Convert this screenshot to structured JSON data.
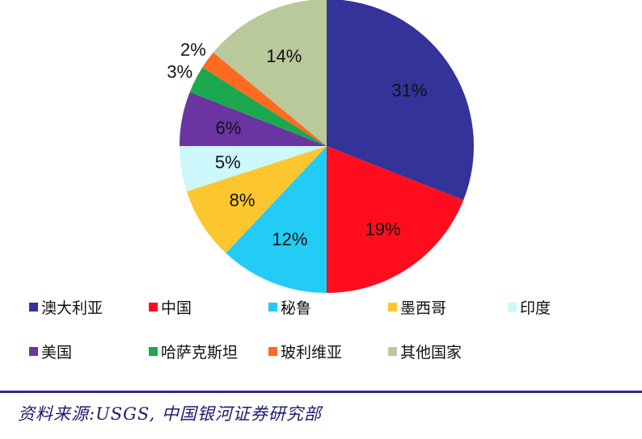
{
  "chart_data": {
    "type": "pie",
    "title": "",
    "start_angle_deg": 0,
    "direction": "clockwise",
    "categories": [
      "澳大利亚",
      "中国",
      "秘鲁",
      "墨西哥",
      "印度",
      "美国",
      "哈萨克斯坦",
      "玻利维亚",
      "其他国家"
    ],
    "values": [
      31,
      19,
      12,
      8,
      5,
      6,
      3,
      2,
      14
    ],
    "labels": [
      "31%",
      "19%",
      "12%",
      "8%",
      "5%",
      "6%",
      "3%",
      "2%",
      "14%"
    ],
    "colors": [
      "#333399",
      "#ff0d1e",
      "#22ccf5",
      "#fcc62e",
      "#ccf7fb",
      "#6a35a0",
      "#1ba84e",
      "#ff6a21",
      "#b9c99a"
    ],
    "legend_position": "bottom"
  },
  "legend": [
    {
      "label": "澳大利亚",
      "color": "#333399"
    },
    {
      "label": "中国",
      "color": "#ff0d1e"
    },
    {
      "label": "秘鲁",
      "color": "#22ccf5"
    },
    {
      "label": "墨西哥",
      "color": "#fcc62e"
    },
    {
      "label": "印度",
      "color": "#ccf7fb"
    },
    {
      "label": "美国",
      "color": "#6a35a0"
    },
    {
      "label": "哈萨克斯坦",
      "color": "#1ba84e"
    },
    {
      "label": "玻利维亚",
      "color": "#ff6a21"
    },
    {
      "label": "其他国家",
      "color": "#b9c99a"
    }
  ],
  "footer": {
    "source": "资料来源:USGS, 中国银河证券研究部"
  }
}
